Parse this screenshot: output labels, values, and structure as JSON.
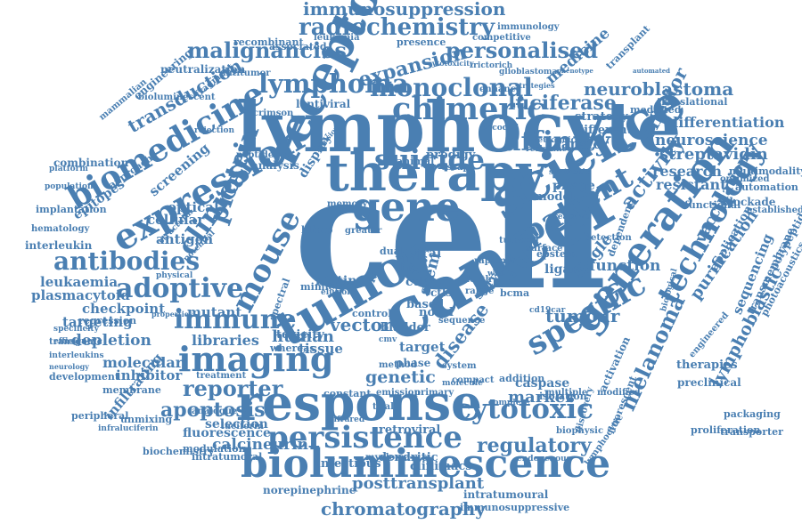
{
  "theme": {
    "word_color": "#4a7fb2",
    "background": "#ffffff"
  },
  "words": [
    "cell",
    "cancer",
    "lymphocyte",
    "tumor",
    "therapy",
    "response",
    "bioluminescence",
    "receptor",
    "science",
    "gene",
    "expression",
    "biomedicine",
    "generation",
    "persistence",
    "specific",
    "technology",
    "cytotoxic",
    "chimeric",
    "imaging",
    "antibodies",
    "adoptive",
    "lymphoma",
    "radiochemistry",
    "malignancies",
    "suicide",
    "affinity",
    "patient",
    "immune",
    "clinical",
    "protein",
    "mouse",
    "monoclonal",
    "personalised",
    "expansion",
    "luciferase",
    "neuroblastoma",
    "immunosuppression",
    "melanoma",
    "regulatory",
    "chromatography",
    "reporter",
    "posttransplant",
    "apoptosis",
    "calcineurin",
    "disease",
    "streptavidin",
    "tumour",
    "vector",
    "lymphoblastic",
    "purification",
    "activity",
    "effector",
    "transduction",
    "neuroscience",
    "differentiation",
    "research",
    "resistant",
    "leukaemia",
    "plasmacytoid",
    "depletion",
    "molecular",
    "inhibitor",
    "fluorescence",
    "infiltrating",
    "checkpoint",
    "libraries",
    "selection",
    "mutant",
    "targeting",
    "genetic",
    "marker",
    "vaccination",
    "human",
    "tissue",
    "dendritic",
    "infectious",
    "retroviral",
    "clinimacs",
    "norepinephrine",
    "intratumoural",
    "immunosuppressive",
    "sequencing",
    "transmembrane",
    "photoacoustics",
    "application",
    "polypeptide",
    "automation",
    "multimodality",
    "optimized",
    "blockade",
    "established",
    "functional",
    "medicine",
    "mediated",
    "translational",
    "transfer",
    "strategy",
    "different",
    "phage",
    "display",
    "model",
    "leukemia",
    "recombinant",
    "associated",
    "presence",
    "immunology",
    "competitive",
    "transplant",
    "automated",
    "neutralization",
    "engineering",
    "fragment",
    "antitumor",
    "crimson",
    "lentiviral",
    "bioluminescent",
    "mammalian",
    "combination",
    "platform",
    "population",
    "implantation",
    "hematology",
    "interleukin",
    "regression",
    "transgenic",
    "specificity",
    "efficiency",
    "interleukins",
    "neurology",
    "development",
    "membrane",
    "peripheral",
    "unmixing",
    "analogue",
    "infraluciferin",
    "modulation",
    "intratumoral",
    "biochemistry",
    "luciferin",
    "myeloma",
    "endogenous",
    "lymphocytic",
    "discovery",
    "packaging",
    "transporter",
    "proliferation",
    "preclinical",
    "therapies",
    "caspase",
    "addition",
    "isolation",
    "biophysic",
    "activation",
    "fluorescent",
    "virus",
    "viral",
    "toxicity",
    "novel",
    "target",
    "screening",
    "cellular",
    "antigen",
    "optical",
    "epitopes",
    "approach",
    "analysis",
    "peptide",
    "blimp",
    "mimic",
    "dual",
    "elution",
    "rapamycin",
    "bcma",
    "ligand",
    "epstein",
    "detection",
    "single",
    "function",
    "dependent",
    "engineered",
    "rejection",
    "infusion",
    "prodigy",
    "escape",
    "encoded",
    "resistance",
    "leukemic",
    "synthetic",
    "enhance",
    "strategies",
    "glioblastoma",
    "phenotype",
    "cytotoxicity",
    "trictorich",
    "tumoral",
    "potential",
    "physical",
    "structural",
    "spectral",
    "survival",
    "death",
    "range",
    "stem",
    "life",
    "whole",
    "ctla",
    "biotin",
    "ctls",
    "control",
    "bladder",
    "bio",
    "memory",
    "animal",
    "greater",
    "based",
    "system",
    "primary",
    "method",
    "phase",
    "constant",
    "emission",
    "compact",
    "molecule",
    "complete",
    "surface",
    "reactive",
    "cd19car",
    "multiple",
    "modified",
    "biological",
    "whereas",
    "treatment",
    "properties",
    "infrared",
    "trial",
    "sequence",
    "cmv"
  ]
}
